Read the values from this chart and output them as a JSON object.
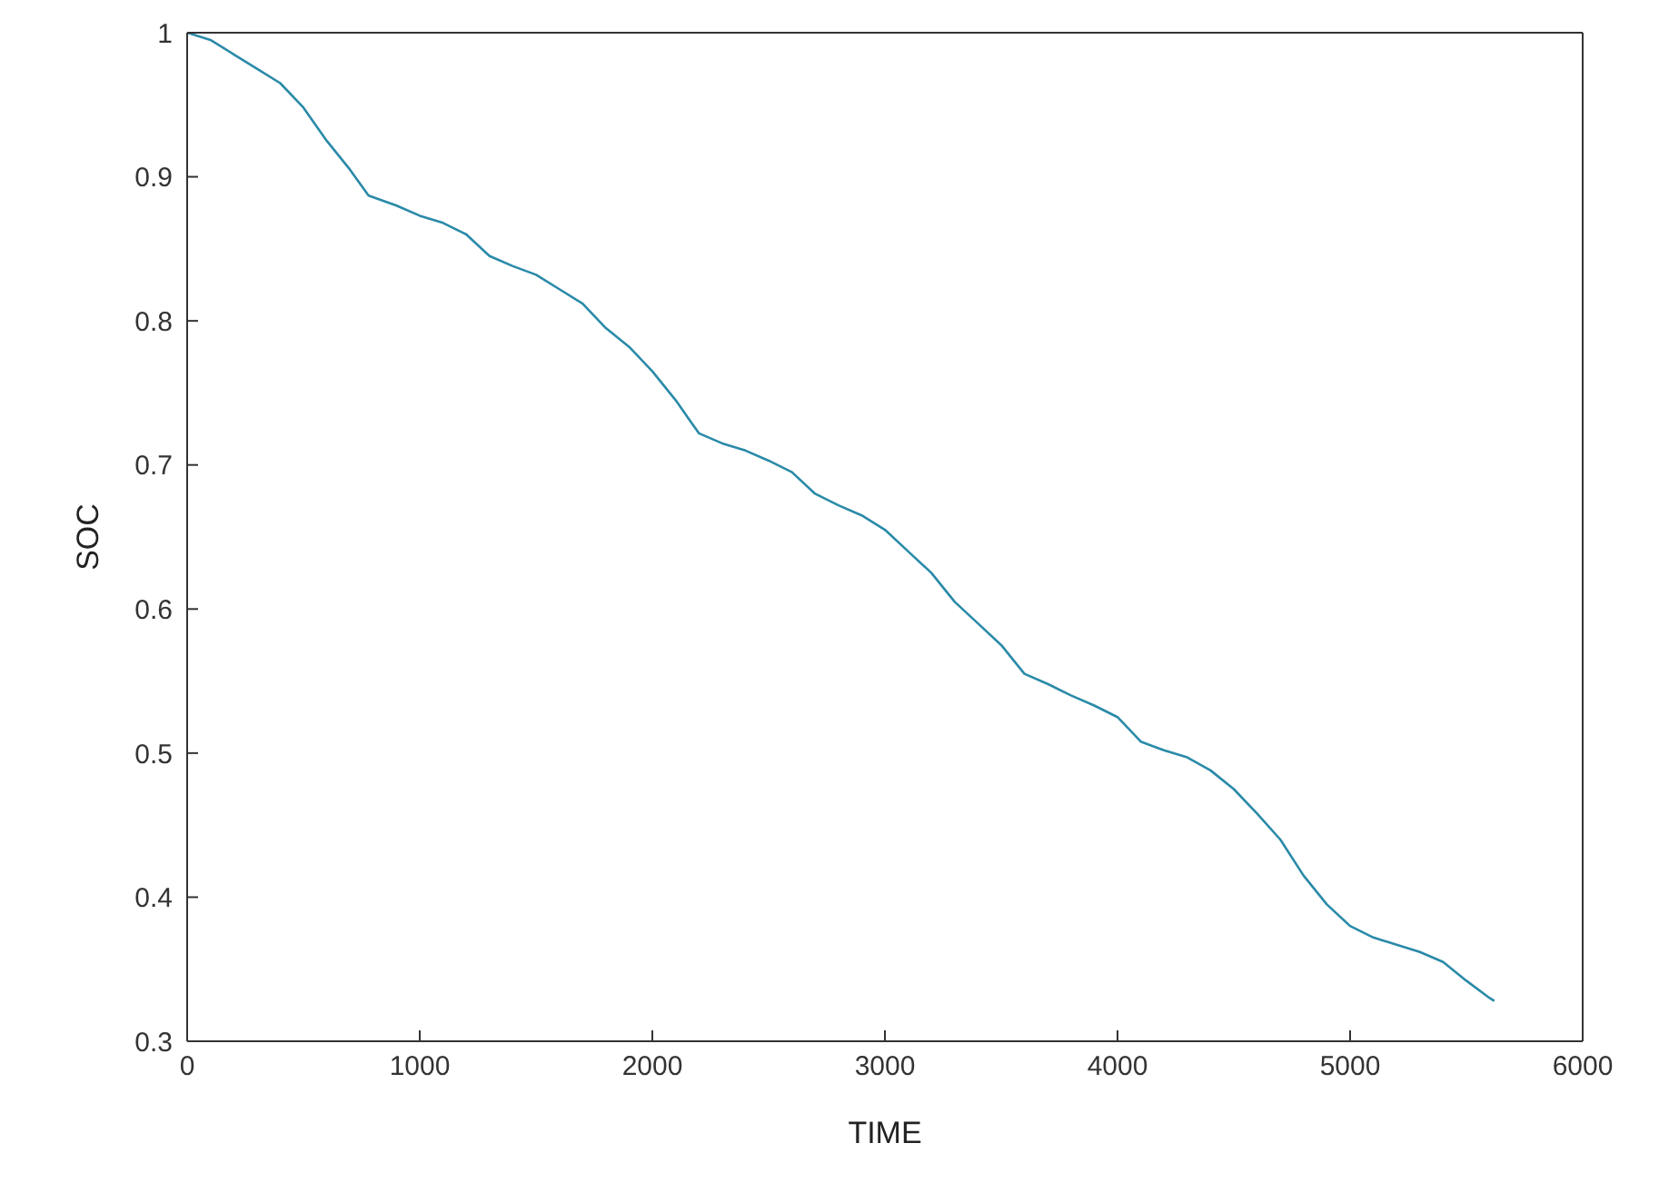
{
  "chart_data": {
    "type": "line",
    "xlabel": "TIME",
    "ylabel": "SOC",
    "xlim": [
      0,
      6000
    ],
    "xticks": [
      0,
      1000,
      2000,
      3000,
      4000,
      5000,
      6000
    ],
    "ylim": [
      0.3,
      1
    ],
    "yticks": [
      0.3,
      0.4,
      0.5,
      0.6,
      0.7,
      0.8,
      0.9,
      1
    ],
    "grid": false,
    "legend": false,
    "marker": "none",
    "line_style": "solid",
    "x": [
      0,
      100,
      200,
      300,
      400,
      500,
      600,
      700,
      780,
      900,
      1000,
      1100,
      1200,
      1300,
      1400,
      1500,
      1600,
      1700,
      1800,
      1900,
      2000,
      2100,
      2200,
      2300,
      2400,
      2500,
      2600,
      2700,
      2800,
      2900,
      3000,
      3100,
      3200,
      3300,
      3400,
      3500,
      3600,
      3700,
      3800,
      3900,
      4000,
      4100,
      4200,
      4300,
      4400,
      4500,
      4600,
      4700,
      4800,
      4900,
      5000,
      5100,
      5200,
      5300,
      5400,
      5500,
      5600,
      5620
    ],
    "series": [
      {
        "color": "#2a8aa8",
        "values": [
          1.0,
          0.995,
          0.985,
          0.975,
          0.965,
          0.948,
          0.925,
          0.905,
          0.887,
          0.88,
          0.873,
          0.868,
          0.86,
          0.845,
          0.838,
          0.832,
          0.822,
          0.812,
          0.795,
          0.782,
          0.765,
          0.745,
          0.722,
          0.715,
          0.71,
          0.703,
          0.695,
          0.68,
          0.672,
          0.665,
          0.655,
          0.64,
          0.625,
          0.605,
          0.59,
          0.575,
          0.555,
          0.548,
          0.54,
          0.533,
          0.525,
          0.508,
          0.502,
          0.497,
          0.488,
          0.475,
          0.458,
          0.44,
          0.415,
          0.395,
          0.38,
          0.372,
          0.367,
          0.362,
          0.355,
          0.342,
          0.33,
          0.328
        ]
      }
    ]
  }
}
